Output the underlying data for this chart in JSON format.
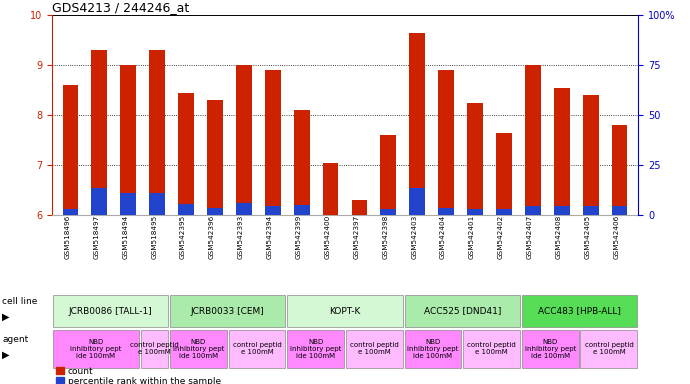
{
  "title": "GDS4213 / 244246_at",
  "samples": [
    "GSM518496",
    "GSM518497",
    "GSM518494",
    "GSM518495",
    "GSM542395",
    "GSM542396",
    "GSM542393",
    "GSM542394",
    "GSM542399",
    "GSM542400",
    "GSM542397",
    "GSM542398",
    "GSM542403",
    "GSM542404",
    "GSM542401",
    "GSM542402",
    "GSM542407",
    "GSM542408",
    "GSM542405",
    "GSM542406"
  ],
  "red_values": [
    8.6,
    9.3,
    9.0,
    9.3,
    8.45,
    8.3,
    9.0,
    8.9,
    8.1,
    7.05,
    6.3,
    7.6,
    9.65,
    8.9,
    8.25,
    7.65,
    9.0,
    8.55,
    8.4,
    7.8
  ],
  "blue_values": [
    6.12,
    6.55,
    6.45,
    6.45,
    6.22,
    6.15,
    6.25,
    6.18,
    6.2,
    6.0,
    6.0,
    6.12,
    6.55,
    6.15,
    6.12,
    6.12,
    6.18,
    6.18,
    6.18,
    6.18
  ],
  "ylim_left": [
    6.0,
    10.0
  ],
  "ylim_right": [
    0,
    100
  ],
  "yticks_left": [
    6,
    7,
    8,
    9,
    10
  ],
  "yticks_right": [
    0,
    25,
    50,
    75,
    100
  ],
  "ytick_right_labels": [
    "0",
    "25",
    "50",
    "75",
    "100%"
  ],
  "cell_lines": [
    {
      "label": "JCRB0086 [TALL-1]",
      "start": 0,
      "end": 4,
      "color": "#d4f7d4"
    },
    {
      "label": "JCRB0033 [CEM]",
      "start": 4,
      "end": 8,
      "color": "#aaeaaa"
    },
    {
      "label": "KOPT-K",
      "start": 8,
      "end": 12,
      "color": "#d4f7d4"
    },
    {
      "label": "ACC525 [DND41]",
      "start": 12,
      "end": 16,
      "color": "#aaeaaa"
    },
    {
      "label": "ACC483 [HPB-ALL]",
      "start": 16,
      "end": 20,
      "color": "#55dd55"
    }
  ],
  "agent_groups": [
    {
      "label": "NBD\ninhibitory pept\nide 100mM",
      "start": 0,
      "end": 3,
      "color": "#ff88ff"
    },
    {
      "label": "control peptid\ne 100mM",
      "start": 3,
      "end": 4,
      "color": "#ffbbff"
    },
    {
      "label": "NBD\ninhibitory pept\nide 100mM",
      "start": 4,
      "end": 6,
      "color": "#ff88ff"
    },
    {
      "label": "control peptid\ne 100mM",
      "start": 6,
      "end": 8,
      "color": "#ffbbff"
    },
    {
      "label": "NBD\ninhibitory pept\nide 100mM",
      "start": 8,
      "end": 10,
      "color": "#ff88ff"
    },
    {
      "label": "control peptid\ne 100mM",
      "start": 10,
      "end": 12,
      "color": "#ffbbff"
    },
    {
      "label": "NBD\ninhibitory pept\nide 100mM",
      "start": 12,
      "end": 14,
      "color": "#ff88ff"
    },
    {
      "label": "control peptid\ne 100mM",
      "start": 14,
      "end": 16,
      "color": "#ffbbff"
    },
    {
      "label": "NBD\ninhibitory pept\nide 100mM",
      "start": 16,
      "end": 18,
      "color": "#ff88ff"
    },
    {
      "label": "control peptid\ne 100mM",
      "start": 18,
      "end": 20,
      "color": "#ffbbff"
    }
  ],
  "bar_width": 0.55,
  "red_color": "#cc2200",
  "blue_color": "#2244cc",
  "bg_color": "#ffffff",
  "axis_left_color": "#cc2200",
  "axis_right_color": "#0000cc",
  "tick_fontsize": 7,
  "title_fontsize": 9,
  "sample_fontsize": 5.2,
  "cell_fontsize": 6.5,
  "agent_fontsize": 5.0,
  "legend_fontsize": 6.5
}
